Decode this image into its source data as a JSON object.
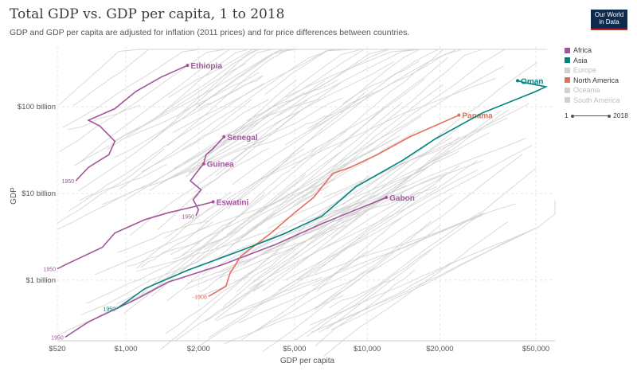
{
  "header": {
    "title": "Total GDP vs. GDP per capita, 1 to 2018",
    "subtitle": "GDP and GDP per capita are adjusted for inflation (2011 prices) and for price differences between countries.",
    "logo_line1": "Our World",
    "logo_line2": "in Data"
  },
  "legend": {
    "items": [
      {
        "label": "Africa",
        "color": "#a2559c",
        "active": true
      },
      {
        "label": "Asia",
        "color": "#00847e",
        "active": true
      },
      {
        "label": "Europe",
        "color": "#d0d0d0",
        "active": false
      },
      {
        "label": "North America",
        "color": "#e56e5a",
        "active": true
      },
      {
        "label": "Oceania",
        "color": "#d0d0d0",
        "active": false
      },
      {
        "label": "South America",
        "color": "#d0d0d0",
        "active": false
      }
    ]
  },
  "timeline": {
    "start": "1",
    "end": "2018"
  },
  "chart_data": {
    "type": "scatter",
    "title": "Total GDP vs. GDP per capita, 1 to 2018",
    "xlabel": "GDP per capita",
    "ylabel": "GDP",
    "x_scale": "log",
    "y_scale": "log",
    "xlim": [
      520,
      60000
    ],
    "ylim": [
      200000000,
      500000000000
    ],
    "x_ticks": [
      {
        "value": 520,
        "label": "$520"
      },
      {
        "value": 1000,
        "label": "$1,000"
      },
      {
        "value": 2000,
        "label": "$2,000"
      },
      {
        "value": 5000,
        "label": "$5,000"
      },
      {
        "value": 10000,
        "label": "$10,000"
      },
      {
        "value": 20000,
        "label": "$20,000"
      },
      {
        "value": 50000,
        "label": "$50,000"
      }
    ],
    "y_ticks": [
      {
        "value": 1000000000,
        "label": "$1 billion"
      },
      {
        "value": 10000000000,
        "label": "$10 billion"
      },
      {
        "value": 100000000000,
        "label": "$100 billion"
      }
    ],
    "grid": true,
    "series": [
      {
        "name": "Ethiopia",
        "color": "#a2559c",
        "start_label": "1950",
        "points": [
          [
            620,
            14000000000
          ],
          [
            700,
            20000000000
          ],
          [
            850,
            28000000000
          ],
          [
            900,
            40000000000
          ],
          [
            780,
            60000000000
          ],
          [
            700,
            70000000000
          ],
          [
            900,
            95000000000
          ],
          [
            1100,
            150000000000
          ],
          [
            1400,
            220000000000
          ],
          [
            1800,
            300000000000
          ]
        ]
      },
      {
        "name": "Guinea",
        "color": "#a2559c",
        "start_label": "1950",
        "points": [
          [
            1950,
            5500000000
          ],
          [
            2000,
            6500000000
          ],
          [
            1900,
            8500000000
          ],
          [
            2050,
            11000000000
          ],
          [
            1850,
            14000000000
          ],
          [
            1950,
            17000000000
          ],
          [
            2100,
            22000000000
          ]
        ]
      },
      {
        "name": "Senegal",
        "color": "#a2559c",
        "start_label": null,
        "points": [
          [
            2100,
            22000000000
          ],
          [
            2150,
            28000000000
          ],
          [
            2300,
            33000000000
          ],
          [
            2550,
            45000000000
          ]
        ]
      },
      {
        "name": "Eswatini",
        "color": "#a2559c",
        "start_label": "1950",
        "points": [
          [
            520,
            1350000000
          ],
          [
            560,
            1500000000
          ],
          [
            800,
            2400000000
          ],
          [
            900,
            3500000000
          ],
          [
            1200,
            5000000000
          ],
          [
            1500,
            6000000000
          ],
          [
            1900,
            7000000000
          ],
          [
            2300,
            8000000000
          ]
        ]
      },
      {
        "name": "Gabon",
        "color": "#a2559c",
        "start_label": "1950",
        "points": [
          [
            560,
            220000000
          ],
          [
            700,
            330000000
          ],
          [
            1100,
            600000000
          ],
          [
            1500,
            950000000
          ],
          [
            2500,
            1500000000
          ],
          [
            4200,
            2600000000
          ],
          [
            6500,
            4500000000
          ],
          [
            12000,
            9000000000
          ]
        ]
      },
      {
        "name": "Panama",
        "color": "#e56e5a",
        "start_label": "1906",
        "points": [
          [
            2200,
            650000000
          ],
          [
            2600,
            850000000
          ],
          [
            2700,
            1200000000
          ],
          [
            3000,
            1900000000
          ],
          [
            4000,
            3500000000
          ],
          [
            5000,
            6000000000
          ],
          [
            6000,
            9000000000
          ],
          [
            7200,
            17000000000
          ],
          [
            8500,
            20000000000
          ],
          [
            11000,
            28000000000
          ],
          [
            15000,
            45000000000
          ],
          [
            24000,
            80000000000
          ]
        ]
      },
      {
        "name": "Oman",
        "color": "#00847e",
        "start_label": "1950",
        "points": [
          [
            920,
            470000000
          ],
          [
            1200,
            800000000
          ],
          [
            1800,
            1300000000
          ],
          [
            3000,
            2200000000
          ],
          [
            4500,
            3400000000
          ],
          [
            6500,
            5500000000
          ],
          [
            9000,
            12000000000
          ],
          [
            14000,
            24000000000
          ],
          [
            19000,
            42000000000
          ],
          [
            30000,
            85000000000
          ],
          [
            50000,
            150000000000
          ],
          [
            55000,
            170000000000
          ],
          [
            45000,
            190000000000
          ],
          [
            42000,
            200000000000
          ]
        ]
      }
    ]
  }
}
